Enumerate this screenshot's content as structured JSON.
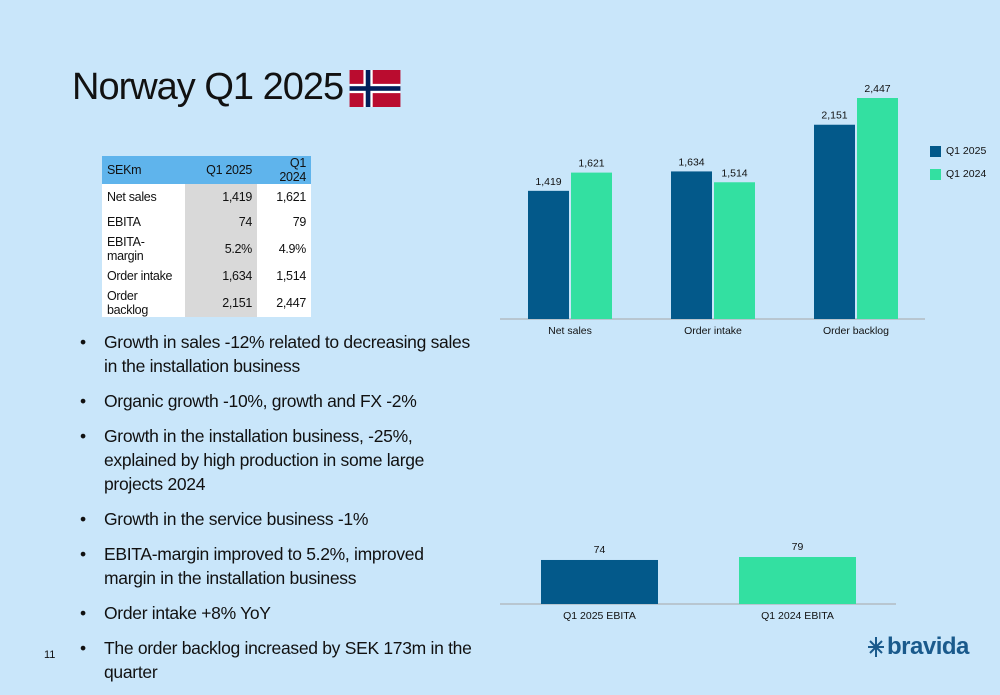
{
  "page": {
    "title": "Norway Q1 2025",
    "page_number": "11",
    "flag_icon": "norway-flag-icon"
  },
  "colors": {
    "background": "#c9e6fa",
    "q1_2025": "#03598a",
    "q1_2024": "#33e0a1",
    "table_header": "#5fb4ec",
    "brand": "#1a5a8c"
  },
  "table": {
    "headers": [
      "SEKm",
      "Q1 2025",
      "Q1 2024"
    ],
    "rows": [
      [
        "Net sales",
        "1,419",
        "1,621"
      ],
      [
        "EBITA",
        "74",
        "79"
      ],
      [
        "EBITA-margin",
        "5.2%",
        "4.9%"
      ],
      [
        "Order intake",
        "1,634",
        "1,514"
      ],
      [
        "Order backlog",
        "2,151",
        "2,447"
      ]
    ]
  },
  "bullets": [
    "Growth in sales -12% related to decreasing sales in the installation business",
    "Organic growth -10%, growth and FX -2%",
    "Growth in the installation business, -25%, explained by high production in some large projects 2024",
    "Growth in the service business -1%",
    "EBITA-margin improved to 5.2%, improved margin in the installation business",
    "Order intake +8% YoY",
    "The order backlog increased by SEK 173m in the quarter"
  ],
  "legend": {
    "items": [
      "Q1 2025",
      "Q1 2024"
    ]
  },
  "logo": {
    "text": "bravida",
    "icon": "bravida-logo-icon"
  },
  "chart_data": [
    {
      "type": "bar",
      "categories": [
        "Net sales",
        "Order intake",
        "Order backlog"
      ],
      "series": [
        {
          "name": "Q1 2025",
          "values": [
            1419,
            1634,
            2151
          ],
          "labels": [
            "1,419",
            "1,634",
            "2,151"
          ]
        },
        {
          "name": "Q1 2024",
          "values": [
            1621,
            1514,
            2447
          ],
          "labels": [
            "1,621",
            "1,514",
            "2,447"
          ]
        }
      ],
      "ylim": [
        0,
        2447
      ],
      "grid": false,
      "legend": "right"
    },
    {
      "type": "bar",
      "categories": [
        "Q1 2025 EBITA",
        "Q1 2024 EBITA"
      ],
      "values": [
        74,
        79
      ],
      "labels": [
        "74",
        "79"
      ],
      "ylim": [
        0,
        79
      ],
      "grid": false
    }
  ]
}
